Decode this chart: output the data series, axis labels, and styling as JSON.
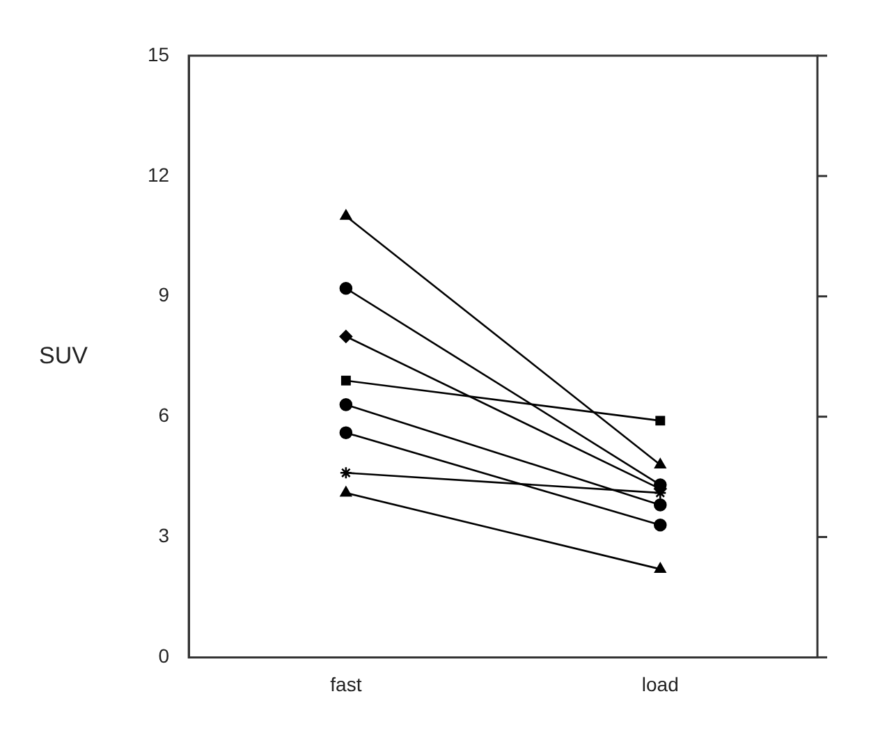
{
  "chart_data": {
    "type": "line",
    "ylabel": "SUV",
    "categories": [
      "fast",
      "load"
    ],
    "ylim": [
      0,
      15
    ],
    "yticks": [
      0,
      3,
      6,
      9,
      12,
      15
    ],
    "grid": false,
    "legend": false,
    "line_style": "solid",
    "series": [
      {
        "color": "#000000",
        "marker": "triangle",
        "values": [
          11.0,
          4.8
        ]
      },
      {
        "color": "#000000",
        "marker": "circle",
        "values": [
          9.2,
          4.3
        ]
      },
      {
        "color": "#000000",
        "marker": "diamond",
        "values": [
          8.0,
          4.2
        ]
      },
      {
        "color": "#000000",
        "marker": "square",
        "values": [
          6.9,
          5.9
        ]
      },
      {
        "color": "#000000",
        "marker": "circle",
        "values": [
          6.3,
          3.8
        ]
      },
      {
        "color": "#000000",
        "marker": "circle",
        "values": [
          5.6,
          3.3
        ]
      },
      {
        "color": "#000000",
        "marker": "cross",
        "values": [
          4.6,
          4.1
        ]
      },
      {
        "color": "#000000",
        "marker": "triangle",
        "values": [
          4.1,
          2.2
        ]
      }
    ]
  }
}
